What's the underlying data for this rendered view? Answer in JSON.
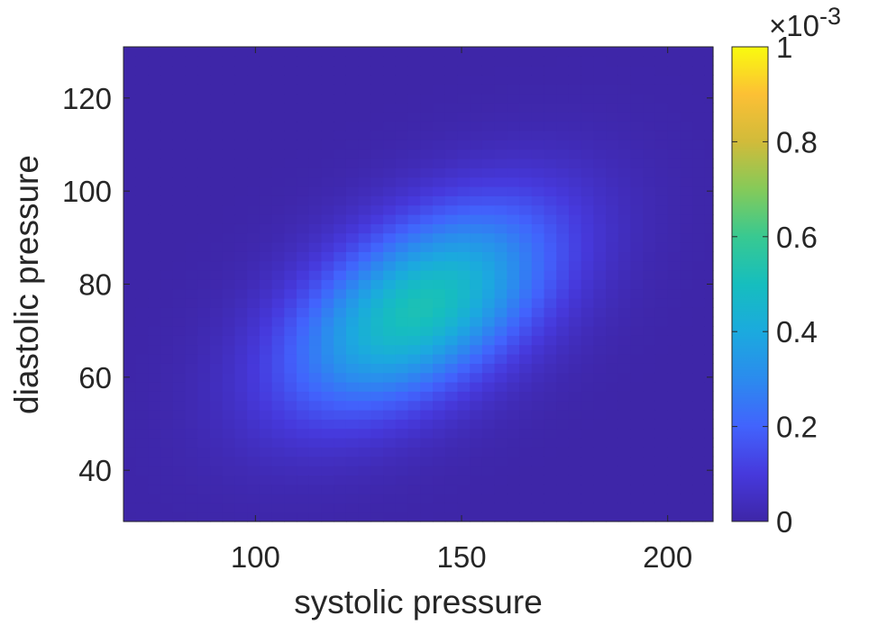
{
  "chart_data": {
    "type": "heatmap",
    "title": "",
    "xlabel": "systolic pressure",
    "ylabel": "diastolic pressure",
    "xlim": [
      68,
      211
    ],
    "ylim": [
      29,
      131
    ],
    "x_ticks": [
      100,
      150,
      200
    ],
    "y_ticks": [
      40,
      60,
      80,
      100,
      120
    ],
    "grid": false,
    "colormap": "parula",
    "colorbar": {
      "min": 0,
      "max": 0.001,
      "multiplier_base": "×10",
      "multiplier_exponent": "-3",
      "ticks": [
        0,
        0.2,
        0.4,
        0.6,
        0.8,
        1
      ],
      "tick_labels": [
        "0",
        "0.2",
        "0.4",
        "0.6",
        "0.8",
        "1"
      ]
    },
    "density": {
      "model": "bivariate normal",
      "x_step": 3,
      "y_step": 2,
      "mean": [
        140,
        75
      ],
      "sd": [
        22,
        15
      ],
      "correlation": 0.5,
      "peak": 0.00052
    }
  }
}
